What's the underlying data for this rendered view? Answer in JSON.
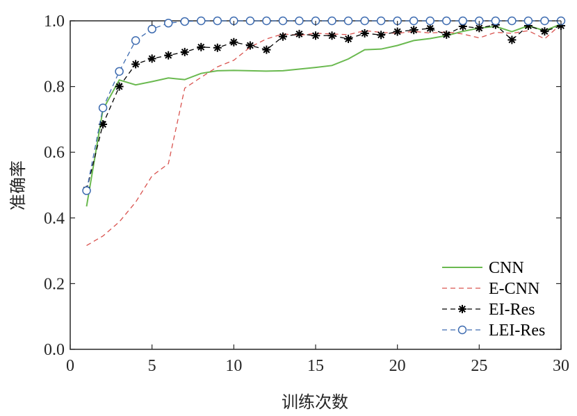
{
  "chart_data": {
    "type": "line",
    "xlabel": "训练次数",
    "ylabel": "准确率",
    "xlim": [
      0,
      30
    ],
    "ylim": [
      0,
      1.0
    ],
    "xticks": [
      "0",
      "5",
      "10",
      "15",
      "20",
      "25",
      "30"
    ],
    "yticks": [
      "0.0",
      "0.2",
      "0.4",
      "0.6",
      "0.8",
      "1.0"
    ],
    "grid": false,
    "legend_position": "bottom-right",
    "x": [
      1,
      2,
      3,
      4,
      5,
      6,
      7,
      8,
      9,
      10,
      11,
      12,
      13,
      14,
      15,
      16,
      17,
      18,
      19,
      20,
      21,
      22,
      23,
      24,
      25,
      26,
      27,
      28,
      29,
      30
    ],
    "series": [
      {
        "name": "CNN",
        "color": "#6ab94f",
        "style": "solid",
        "marker": "none",
        "values": [
          0.435,
          0.73,
          0.82,
          0.805,
          0.815,
          0.826,
          0.821,
          0.84,
          0.848,
          0.849,
          0.848,
          0.847,
          0.848,
          0.853,
          0.858,
          0.864,
          0.884,
          0.912,
          0.914,
          0.925,
          0.94,
          0.946,
          0.955,
          0.968,
          0.978,
          0.983,
          0.967,
          0.985,
          0.97,
          0.99
        ]
      },
      {
        "name": "E-CNN",
        "color": "#d9534f",
        "style": "dashed",
        "marker": "none",
        "values": [
          0.316,
          0.345,
          0.388,
          0.448,
          0.528,
          0.565,
          0.795,
          0.828,
          0.86,
          0.88,
          0.92,
          0.945,
          0.96,
          0.956,
          0.962,
          0.96,
          0.958,
          0.97,
          0.965,
          0.962,
          0.968,
          0.963,
          0.966,
          0.96,
          0.948,
          0.965,
          0.962,
          0.97,
          0.945,
          0.99
        ]
      },
      {
        "name": "EI-Res",
        "color": "#000000",
        "style": "dashed",
        "marker": "asterisk",
        "values": [
          0.485,
          0.685,
          0.8,
          0.868,
          0.885,
          0.895,
          0.905,
          0.92,
          0.918,
          0.935,
          0.925,
          0.912,
          0.952,
          0.96,
          0.955,
          0.955,
          0.945,
          0.962,
          0.957,
          0.967,
          0.972,
          0.977,
          0.958,
          0.983,
          0.978,
          0.988,
          0.942,
          0.985,
          0.968,
          0.985
        ]
      },
      {
        "name": "LEI-Res",
        "color": "#3d6bb0",
        "style": "dashed",
        "marker": "circle",
        "values": [
          0.483,
          0.735,
          0.846,
          0.94,
          0.975,
          0.993,
          0.998,
          1.0,
          1.0,
          1.0,
          1.0,
          1.0,
          1.0,
          1.0,
          1.0,
          1.0,
          1.0,
          1.0,
          1.0,
          1.0,
          1.0,
          1.0,
          1.0,
          1.0,
          1.0,
          1.0,
          1.0,
          1.0,
          1.0,
          1.0
        ]
      }
    ]
  }
}
